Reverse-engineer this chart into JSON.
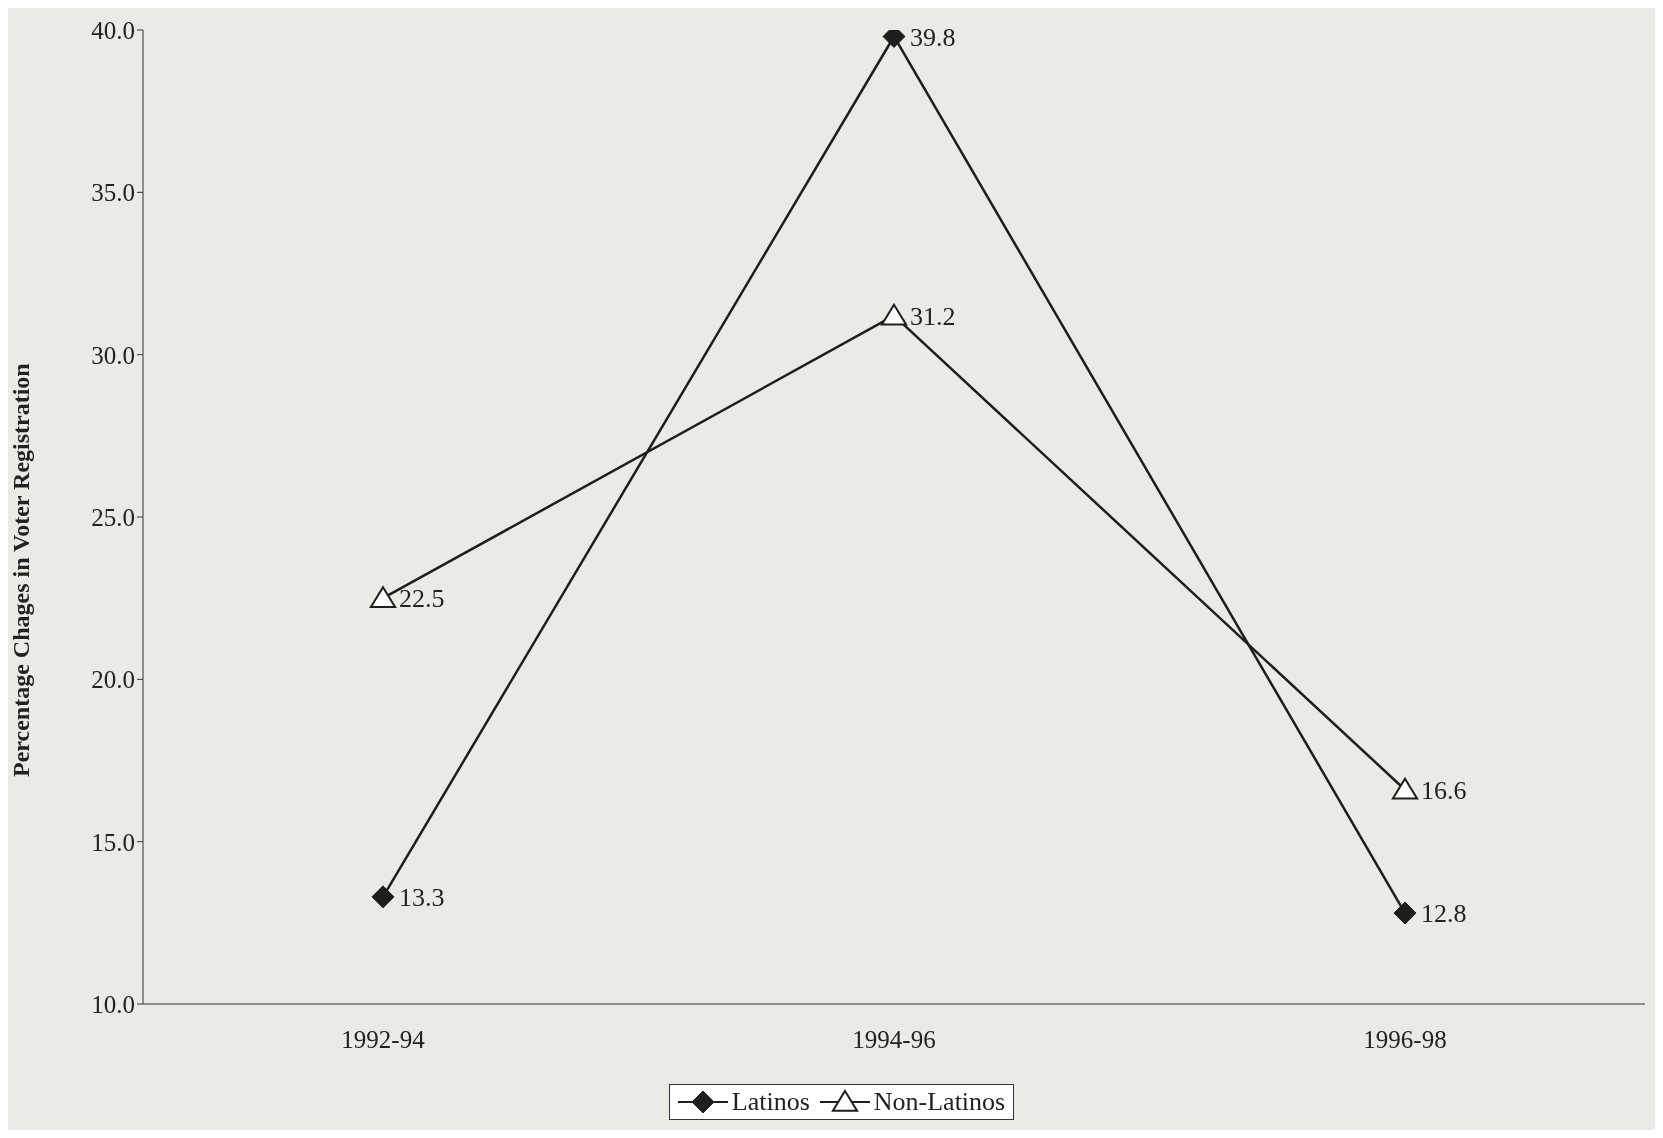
{
  "chart_data": {
    "type": "line",
    "ylabel": "Percentage Chages in Voter Registration",
    "categories": [
      "1992-94",
      "1994-96",
      "1996-98"
    ],
    "series": [
      {
        "name": "Latinos",
        "color": "#1e1e1e",
        "marker": "diamond",
        "values": [
          13.3,
          39.8,
          12.8
        ]
      },
      {
        "name": "Non-Latinos",
        "color": "#1e1e1e",
        "marker": "triangle",
        "values": [
          22.5,
          31.2,
          16.6
        ]
      }
    ],
    "ylim": [
      10,
      40
    ],
    "yticks": [
      {
        "value": 10,
        "label": "10.0"
      },
      {
        "value": 15,
        "label": "15.0"
      },
      {
        "value": 20,
        "label": "20.0"
      },
      {
        "value": 25,
        "label": "25.0"
      },
      {
        "value": 30,
        "label": "30.0"
      },
      {
        "value": 35,
        "label": "35.0"
      },
      {
        "value": 40,
        "label": "40.0"
      }
    ],
    "data_labels": true,
    "legend": "bottom",
    "grid": false,
    "line_style": "solid"
  }
}
